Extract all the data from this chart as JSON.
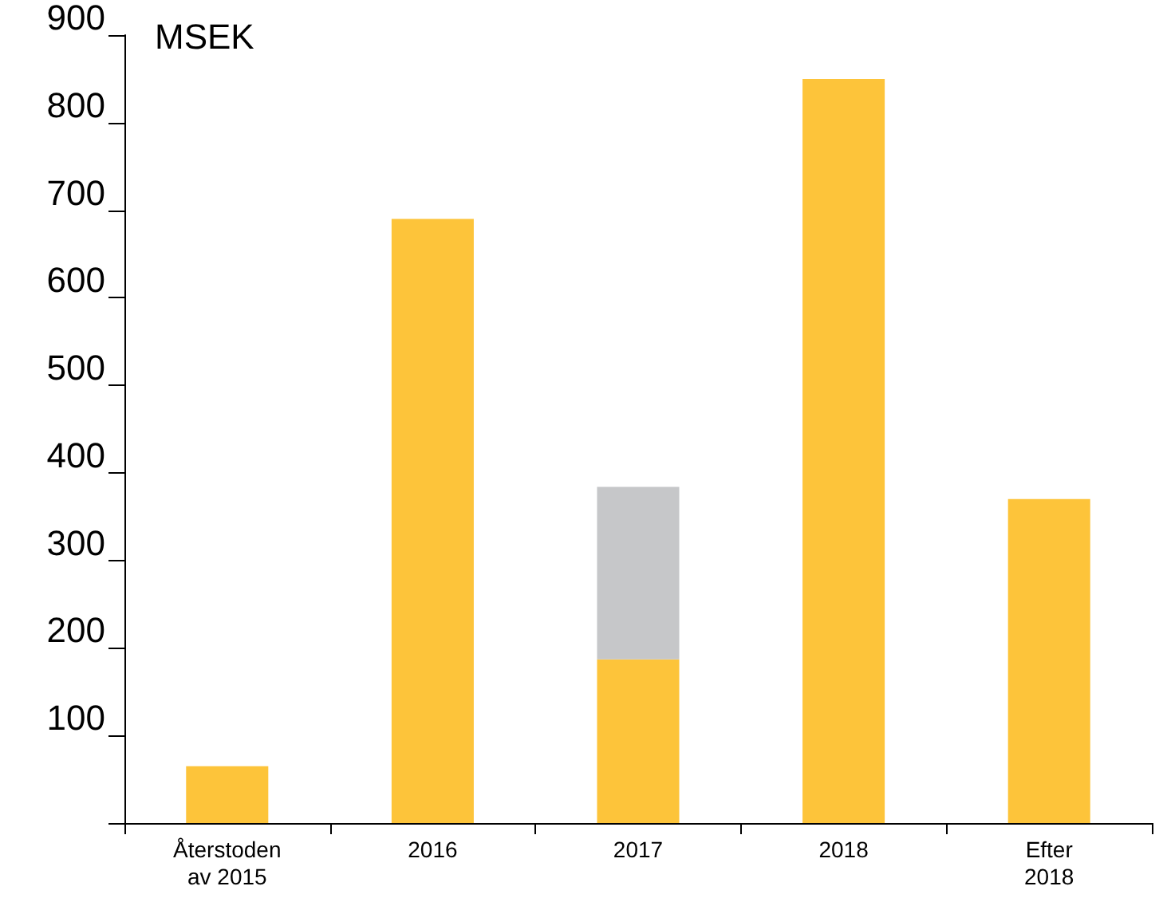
{
  "chart_data": {
    "type": "bar",
    "ylabel": "MSEK",
    "categories": [
      "Återstoden\nav 2015",
      "2016",
      "2017",
      "2018",
      "Efter\n2018"
    ],
    "stacked": true,
    "series": [
      {
        "color": "#fdc43a",
        "values": [
          65,
          690,
          187,
          850,
          370
        ]
      },
      {
        "color": "#c6c7c9",
        "values": [
          null,
          null,
          197,
          null,
          null
        ]
      }
    ],
    "ylim": [
      0,
      900
    ],
    "yticks": [
      {
        "value": 0,
        "label": null
      },
      100,
      200,
      300,
      400,
      500,
      600,
      700,
      800,
      900
    ],
    "grid": false
  }
}
